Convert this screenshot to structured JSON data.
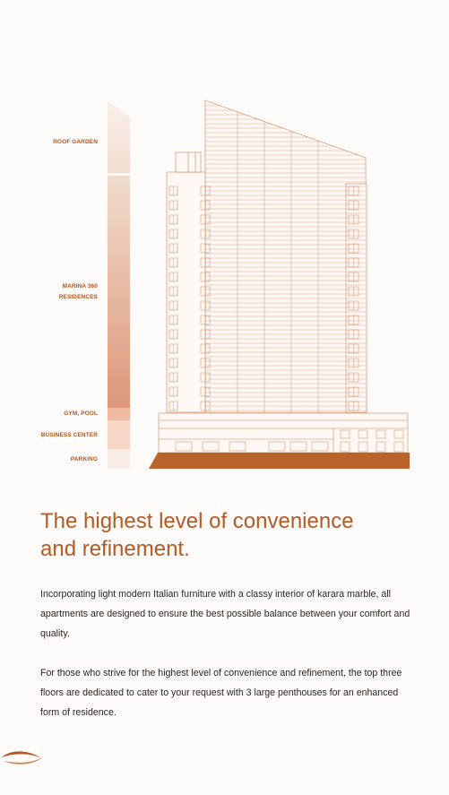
{
  "floors": [
    {
      "label": "ROOF GARDEN"
    },
    {
      "label": "MARINA 360"
    },
    {
      "label": "RESIDENCES"
    },
    {
      "label": "GYM, POOL"
    },
    {
      "label": "BUSINESS CENTER"
    },
    {
      "label": "PARKING"
    }
  ],
  "headline": {
    "line1": "The highest level of convenience",
    "line2": "and refinement."
  },
  "paragraphs": [
    "Incorporating light modern Italian furniture with a classy interior of karara marble, all apartments are designed to ensure the best possible balance between your comfort and quality.",
    "For those who strive for the highest level of convenience and refinement, the top three floors are dedicated to cater to your request with 3 large penthouses for an enhanced form of residence."
  ],
  "colors": {
    "accent": "#b65a22",
    "building_line": "#c7865a",
    "ground": "#b9642a",
    "body_text": "#2c2622"
  },
  "icons": {
    "logo": "swoosh-logo-icon"
  }
}
